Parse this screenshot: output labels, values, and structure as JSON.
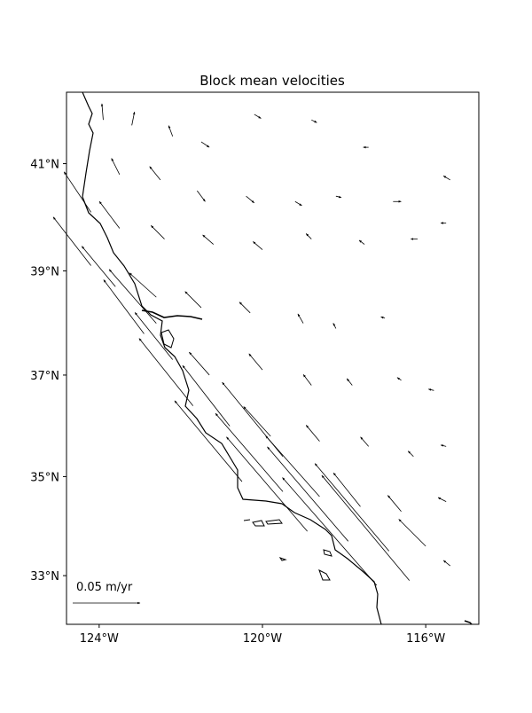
{
  "chart_data": {
    "type": "quiver",
    "title": "Block mean velocities",
    "xlim": [
      -124.8,
      -114.7
    ],
    "ylim": [
      32.0,
      42.3
    ],
    "xticks": [
      {
        "value": -124,
        "label": "124°W"
      },
      {
        "value": -120,
        "label": "120°W"
      },
      {
        "value": -116,
        "label": "116°W"
      }
    ],
    "yticks": [
      {
        "value": 33,
        "label": "33°N"
      },
      {
        "value": 35,
        "label": "35°N"
      },
      {
        "value": 37,
        "label": "37°N"
      },
      {
        "value": 39,
        "label": "39°N"
      },
      {
        "value": 41,
        "label": "41°N"
      }
    ],
    "color": "#000000",
    "key": {
      "value": 0.05,
      "label": "0.05 m/yr"
    },
    "arrows": {
      "lon": [
        -123.9,
        -123.2,
        -122.2,
        -121.5,
        -120.2,
        -118.8,
        -117.4,
        -123.5,
        -122.5,
        -121.6,
        -120.4,
        -119.2,
        -118.2,
        -116.8,
        -115.4,
        -124.2,
        -123.5,
        -122.4,
        -121.2,
        -120.0,
        -118.8,
        -117.5,
        -116.2,
        -115.5,
        -124.2,
        -123.6,
        -122.6,
        -121.5,
        -120.3,
        -119.0,
        -118.2,
        -117.0,
        -122.9,
        -122.2,
        -121.3,
        -120.0,
        -118.8,
        -117.8,
        -116.6,
        -115.8,
        -121.7,
        -120.8,
        -119.8,
        -118.6,
        -117.4,
        -116.3,
        -115.5,
        -120.5,
        -119.5,
        -118.6,
        -117.6,
        -116.6,
        -115.5,
        -118.9,
        -117.9,
        -116.9,
        -116.0,
        -115.4,
        -117.2,
        -116.4,
        -119.5,
        -122.6
      ],
      "lat": [
        41.8,
        41.7,
        41.5,
        41.4,
        41.9,
        41.8,
        41.3,
        40.8,
        40.7,
        40.5,
        40.4,
        40.3,
        40.4,
        40.3,
        40.7,
        40.1,
        39.8,
        39.6,
        39.5,
        39.4,
        39.6,
        39.5,
        39.6,
        39.9,
        39.1,
        38.7,
        38.5,
        38.3,
        38.2,
        38.0,
        37.9,
        38.1,
        37.8,
        37.3,
        37.0,
        37.1,
        36.8,
        36.8,
        36.9,
        36.7,
        36.4,
        36.0,
        35.8,
        35.7,
        35.6,
        35.4,
        35.6,
        34.9,
        34.7,
        34.6,
        34.4,
        34.3,
        34.5,
        33.9,
        33.7,
        33.5,
        33.6,
        33.2,
        32.8,
        32.9,
        35.4,
        38.0
      ],
      "u": [
        -0.001,
        0.002,
        -0.003,
        0.006,
        0.005,
        0.004,
        -0.004,
        -0.006,
        -0.008,
        0.006,
        0.006,
        0.005,
        0.004,
        0.006,
        -0.005,
        -0.02,
        -0.015,
        -0.01,
        -0.008,
        -0.007,
        -0.004,
        -0.004,
        -0.005,
        -0.004,
        -0.028,
        -0.025,
        -0.02,
        -0.012,
        -0.008,
        -0.004,
        -0.002,
        -0.003,
        -0.03,
        -0.028,
        -0.015,
        -0.01,
        -0.006,
        -0.004,
        -0.003,
        -0.004,
        -0.04,
        -0.035,
        -0.02,
        -0.01,
        -0.006,
        -0.004,
        -0.004,
        -0.05,
        -0.05,
        -0.04,
        -0.02,
        -0.01,
        -0.006,
        -0.06,
        -0.06,
        -0.055,
        -0.02,
        -0.005,
        -0.07,
        -0.065,
        -0.045,
        -0.035
      ],
      "v": [
        0.012,
        0.01,
        0.008,
        -0.004,
        -0.003,
        -0.002,
        0.0,
        0.012,
        0.01,
        -0.008,
        -0.005,
        -0.003,
        -0.001,
        0.0,
        0.003,
        0.03,
        0.02,
        0.01,
        0.007,
        0.006,
        0.004,
        0.003,
        0.0,
        0.0,
        0.036,
        0.03,
        0.018,
        0.012,
        0.008,
        0.007,
        0.004,
        0.001,
        0.04,
        0.035,
        0.017,
        0.012,
        0.008,
        0.005,
        0.002,
        0.001,
        0.05,
        0.045,
        0.022,
        0.012,
        0.007,
        0.004,
        0.001,
        0.06,
        0.058,
        0.045,
        0.025,
        0.012,
        0.003,
        0.07,
        0.07,
        0.065,
        0.02,
        0.004,
        0.08,
        0.078,
        0.055,
        0.04
      ]
    }
  }
}
